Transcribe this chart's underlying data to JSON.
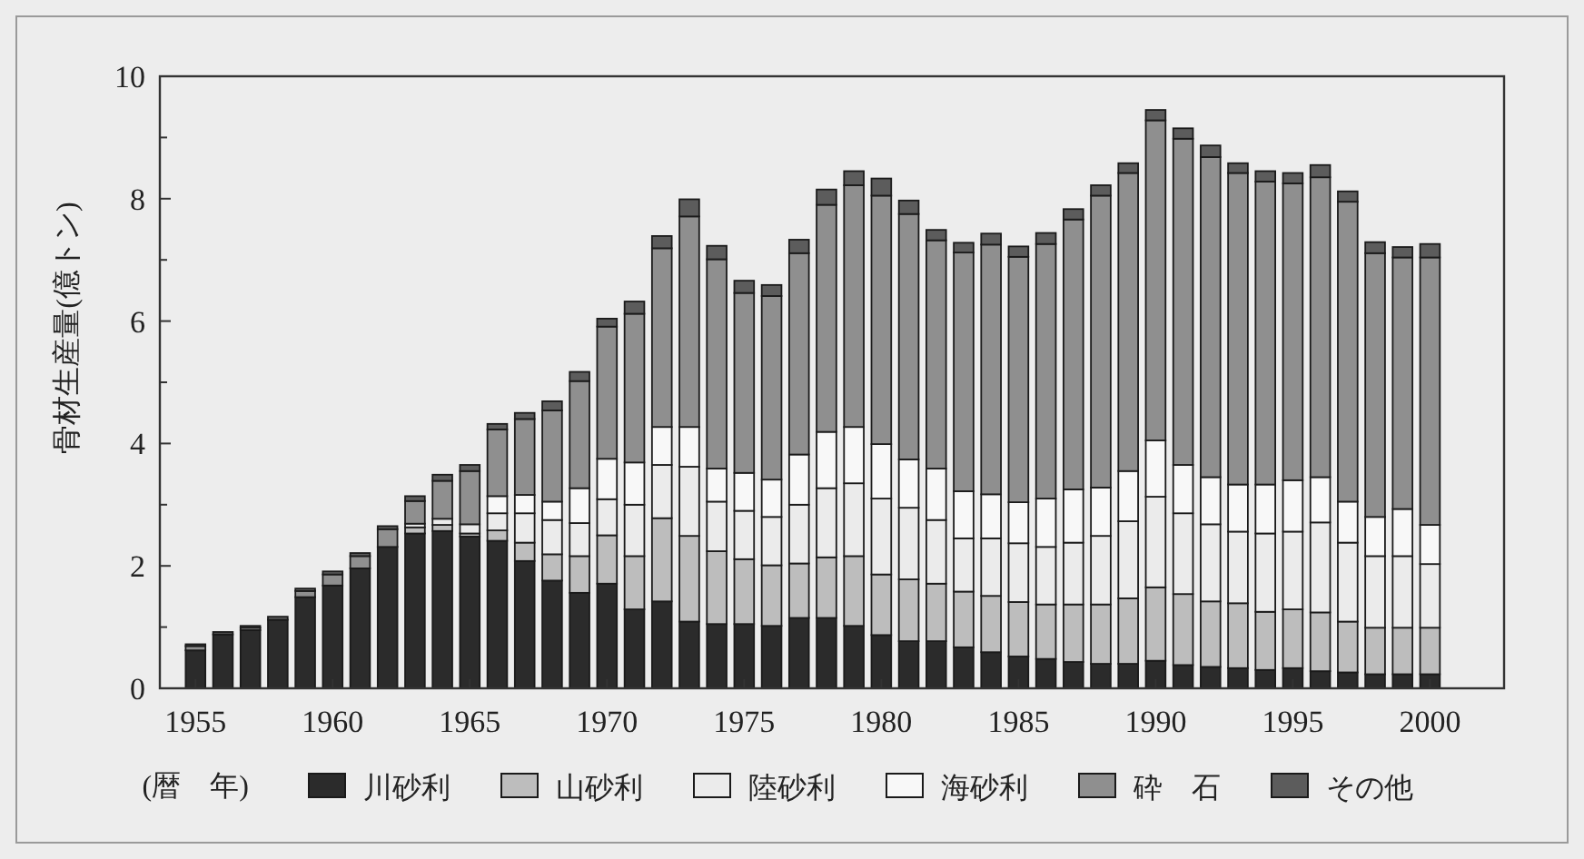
{
  "chart_data": {
    "type": "bar",
    "stacked": true,
    "ylabel": "骨材生産量(億トン)",
    "xlabel": "(暦　年)",
    "legend": "bottom",
    "x": [
      1955,
      1956,
      1957,
      1958,
      1959,
      1960,
      1961,
      1962,
      1963,
      1964,
      1965,
      1966,
      1967,
      1968,
      1969,
      1970,
      1971,
      1972,
      1973,
      1974,
      1975,
      1976,
      1977,
      1978,
      1979,
      1980,
      1981,
      1982,
      1983,
      1984,
      1985,
      1986,
      1987,
      1988,
      1989,
      1990,
      1991,
      1992,
      1993,
      1994,
      1995,
      1996,
      1997,
      1998,
      1999,
      2000
    ],
    "xlim": [
      1953.7,
      2002.7
    ],
    "xticks": [
      1955,
      1960,
      1965,
      1970,
      1975,
      1980,
      1985,
      1990,
      1995,
      2000
    ],
    "ylim": [
      0,
      10
    ],
    "yticks": [
      0,
      {
        "value": 1,
        "label": null
      },
      2,
      {
        "value": 3,
        "label": null
      },
      4,
      {
        "value": 5,
        "label": null
      },
      6,
      {
        "value": 7,
        "label": null
      },
      8,
      {
        "value": 9,
        "label": null
      },
      10
    ],
    "series": [
      {
        "name": "川砂利",
        "color": "#2b2b2b",
        "values": [
          0.62,
          0.88,
          0.95,
          1.12,
          1.49,
          1.68,
          1.96,
          2.31,
          2.53,
          2.57,
          2.48,
          2.41,
          2.08,
          1.76,
          1.56,
          1.71,
          1.29,
          1.42,
          1.09,
          1.05,
          1.05,
          1.02,
          1.15,
          1.15,
          1.02,
          0.87,
          0.77,
          0.77,
          0.67,
          0.59,
          0.52,
          0.48,
          0.43,
          0.4,
          0.4,
          0.45,
          0.38,
          0.35,
          0.33,
          0.3,
          0.33,
          0.28,
          0.26,
          0.23,
          0.23,
          0.23
        ]
      },
      {
        "name": "山砂利",
        "color": "#bdbdbd",
        "values": [
          0,
          0,
          0,
          0,
          0,
          0,
          0,
          0,
          0.1,
          0.1,
          0.05,
          0.17,
          0.3,
          0.43,
          0.6,
          0.79,
          0.87,
          1.36,
          1.4,
          1.19,
          1.06,
          0.99,
          0.89,
          0.99,
          1.14,
          0.99,
          1.01,
          0.94,
          0.91,
          0.92,
          0.89,
          0.89,
          0.94,
          0.97,
          1.07,
          1.2,
          1.16,
          1.07,
          1.06,
          0.95,
          0.96,
          0.96,
          0.83,
          0.76,
          0.76,
          0.76
        ]
      },
      {
        "name": "陸砂利",
        "color": "#ebebeb",
        "values": [
          0,
          0,
          0,
          0,
          0,
          0,
          0,
          0,
          0.06,
          0.1,
          0.15,
          0.28,
          0.48,
          0.56,
          0.54,
          0.59,
          0.84,
          0.87,
          1.13,
          0.81,
          0.79,
          0.79,
          0.96,
          1.13,
          1.19,
          1.24,
          1.17,
          1.04,
          0.87,
          0.94,
          0.96,
          0.94,
          1.01,
          1.12,
          1.26,
          1.48,
          1.32,
          1.26,
          1.17,
          1.28,
          1.27,
          1.47,
          1.29,
          1.17,
          1.17,
          1.04
        ]
      },
      {
        "name": "海砂利",
        "color": "#f8f8f8",
        "values": [
          0,
          0,
          0,
          0,
          0,
          0,
          0,
          0,
          0,
          0,
          0,
          0.28,
          0.3,
          0.3,
          0.57,
          0.66,
          0.69,
          0.62,
          0.65,
          0.54,
          0.62,
          0.61,
          0.82,
          0.92,
          0.92,
          0.89,
          0.79,
          0.84,
          0.77,
          0.72,
          0.67,
          0.79,
          0.87,
          0.79,
          0.82,
          0.92,
          0.79,
          0.77,
          0.77,
          0.8,
          0.84,
          0.74,
          0.67,
          0.64,
          0.77,
          0.64
        ]
      },
      {
        "name": "砕　石",
        "color": "#8f8f8f",
        "values": [
          0.07,
          0,
          0.04,
          0,
          0.1,
          0.18,
          0.2,
          0.29,
          0.37,
          0.62,
          0.87,
          1.09,
          1.24,
          1.49,
          1.75,
          2.16,
          2.43,
          2.92,
          3.44,
          3.42,
          2.94,
          3.0,
          3.29,
          3.71,
          3.95,
          4.06,
          4.01,
          3.73,
          3.9,
          4.08,
          4.01,
          4.16,
          4.41,
          4.77,
          4.87,
          5.23,
          5.33,
          5.23,
          5.09,
          4.95,
          4.85,
          4.9,
          4.9,
          4.31,
          4.11,
          4.37
        ]
      },
      {
        "name": "その他",
        "color": "#5c5c5c",
        "values": [
          0.03,
          0.04,
          0.03,
          0.05,
          0.04,
          0.05,
          0.05,
          0.05,
          0.08,
          0.1,
          0.1,
          0.09,
          0.1,
          0.15,
          0.15,
          0.13,
          0.2,
          0.2,
          0.28,
          0.22,
          0.2,
          0.18,
          0.22,
          0.25,
          0.23,
          0.28,
          0.22,
          0.17,
          0.16,
          0.18,
          0.17,
          0.18,
          0.17,
          0.17,
          0.16,
          0.17,
          0.17,
          0.19,
          0.16,
          0.17,
          0.17,
          0.2,
          0.17,
          0.18,
          0.17,
          0.22
        ]
      }
    ]
  }
}
